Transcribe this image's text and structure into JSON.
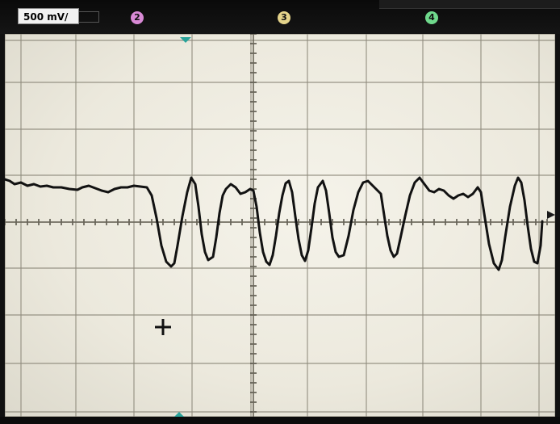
{
  "scope": {
    "ch1_scale": "500 mV/",
    "ch2_number": "2",
    "ch3_number": "3",
    "ch4_number": "4"
  },
  "colors": {
    "ch2": "#d98ad6",
    "ch3": "#e4d38a",
    "ch4": "#6fd98c",
    "trigger_marker": "#2aa39a",
    "trace": "#121212",
    "grid": "#8e8a7c"
  },
  "icons": [
    "trigger-position-marker-icon",
    "channel-ground-marker-icon",
    "cursor-crosshair-icon"
  ]
}
